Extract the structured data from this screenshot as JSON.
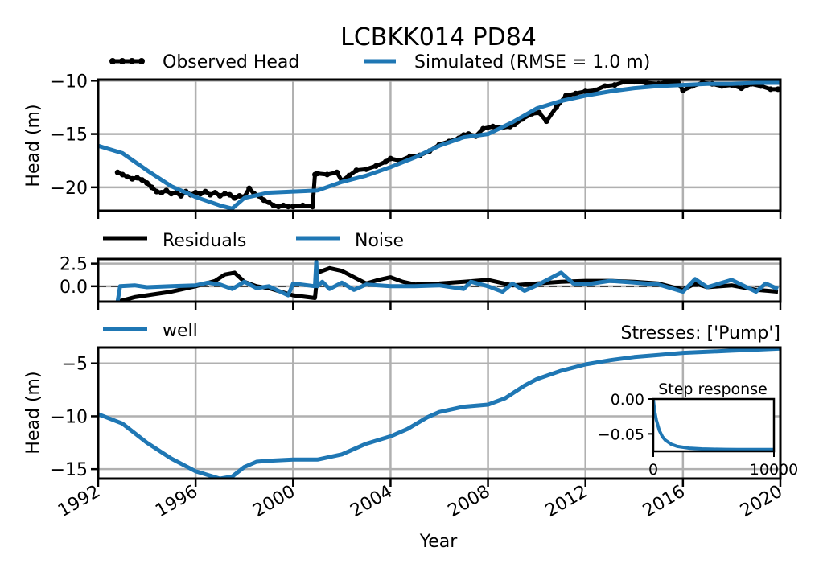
{
  "title": "LCBKK014 PD84",
  "xlabel": "Year",
  "x_ticks": [
    "1992",
    "1996",
    "2000",
    "2004",
    "2008",
    "2012",
    "2016",
    "2020"
  ],
  "colors": {
    "observed": "#000000",
    "simulated": "#1f77b4",
    "grid": "#b0b0b0",
    "zero_line": "#000000"
  },
  "chart_data": [
    {
      "id": "head-panel",
      "type": "line",
      "ylabel": "Head (m)",
      "xlim": [
        1992,
        2020
      ],
      "ylim": [
        -22.2,
        -9.9
      ],
      "y_ticks": [
        -10,
        -15,
        -20
      ],
      "y_tick_labels": [
        "−10",
        "−15",
        "−20"
      ],
      "grid": true,
      "legend": "top, horizontal",
      "series": [
        {
          "name": "Observed Head",
          "style": "line-markers",
          "color": "#000000",
          "x": [
            1992.8,
            1993.0,
            1993.2,
            1993.4,
            1993.6,
            1993.8,
            1994.0,
            1994.2,
            1994.4,
            1994.6,
            1994.8,
            1995.0,
            1995.2,
            1995.4,
            1995.6,
            1995.8,
            1996.0,
            1996.2,
            1996.4,
            1996.6,
            1996.8,
            1997.0,
            1997.2,
            1997.4,
            1997.6,
            1997.8,
            1998.0,
            1998.2,
            1998.4,
            1998.6,
            1998.8,
            1999.0,
            1999.2,
            1999.4,
            1999.6,
            1999.8,
            2000.0,
            2000.4,
            2000.8,
            2000.9,
            2001.0,
            2001.4,
            2001.8,
            2002.0,
            2002.3,
            2002.6,
            2003.0,
            2003.4,
            2003.8,
            2004.0,
            2004.4,
            2004.8,
            2005.2,
            2005.6,
            2006.0,
            2006.4,
            2006.8,
            2007.0,
            2007.2,
            2007.5,
            2007.8,
            2008.2,
            2008.6,
            2008.9,
            2009.1,
            2009.4,
            2009.8,
            2010.1,
            2010.4,
            2010.8,
            2011.2,
            2011.6,
            2012.0,
            2012.4,
            2012.8,
            2013.2,
            2013.6,
            2014.0,
            2014.5,
            2015.0,
            2015.4,
            2015.8,
            2016.0,
            2016.4,
            2016.8,
            2017.2,
            2017.6,
            2018.0,
            2018.4,
            2018.8,
            2019.2,
            2019.6,
            2019.9
          ],
          "y": [
            -18.6,
            -18.8,
            -19.0,
            -19.2,
            -19.1,
            -19.3,
            -19.6,
            -20.0,
            -20.4,
            -20.5,
            -20.3,
            -20.6,
            -20.5,
            -20.8,
            -20.4,
            -20.7,
            -20.5,
            -20.6,
            -20.4,
            -20.7,
            -20.5,
            -20.8,
            -20.6,
            -20.7,
            -21.0,
            -20.8,
            -20.9,
            -20.1,
            -20.6,
            -20.8,
            -21.2,
            -21.4,
            -21.7,
            -21.8,
            -21.7,
            -21.8,
            -21.8,
            -21.7,
            -21.8,
            -18.8,
            -18.7,
            -18.8,
            -18.6,
            -19.4,
            -18.9,
            -18.4,
            -18.3,
            -18.0,
            -17.6,
            -17.3,
            -17.5,
            -17.1,
            -17.0,
            -16.6,
            -16.0,
            -15.7,
            -15.4,
            -15.1,
            -15.0,
            -15.2,
            -14.5,
            -14.3,
            -14.4,
            -14.3,
            -14.1,
            -13.6,
            -13.1,
            -13.0,
            -13.8,
            -12.5,
            -11.4,
            -11.2,
            -11.0,
            -10.9,
            -10.5,
            -10.4,
            -10.1,
            -10.1,
            -10.2,
            -10.3,
            -10.1,
            -10.2,
            -10.9,
            -10.5,
            -10.2,
            -10.3,
            -10.5,
            -10.4,
            -10.7,
            -10.3,
            -10.5,
            -10.8,
            -10.8
          ]
        },
        {
          "name": "Simulated (RMSE = 1.0 m)",
          "style": "line",
          "color": "#1f77b4",
          "x": [
            1992.0,
            1993.0,
            1994.0,
            1995.0,
            1996.0,
            1997.0,
            1997.5,
            1998.0,
            1999.0,
            2000.0,
            2001.0,
            2002.0,
            2003.0,
            2004.0,
            2005.0,
            2006.0,
            2007.0,
            2008.0,
            2009.0,
            2010.0,
            2011.0,
            2012.0,
            2013.0,
            2014.0,
            2015.0,
            2016.0,
            2017.0,
            2018.0,
            2019.0,
            2020.0
          ],
          "y": [
            -16.1,
            -16.8,
            -18.4,
            -19.9,
            -20.9,
            -21.7,
            -22.0,
            -21.0,
            -20.5,
            -20.4,
            -20.3,
            -19.5,
            -18.9,
            -18.1,
            -17.2,
            -16.1,
            -15.3,
            -15.0,
            -13.9,
            -12.6,
            -11.9,
            -11.4,
            -11.0,
            -10.7,
            -10.5,
            -10.4,
            -10.3,
            -10.3,
            -10.2,
            -10.2
          ]
        }
      ]
    },
    {
      "id": "residuals-panel",
      "type": "line",
      "xlim": [
        1992,
        2020
      ],
      "ylim": [
        -1.7,
        3.0
      ],
      "y_ticks": [
        2.5,
        0.0
      ],
      "y_tick_labels": [
        "2.5",
        "0.0"
      ],
      "zero_line": "dashed",
      "grid": true,
      "legend": "top, horizontal",
      "series": [
        {
          "name": "Residuals",
          "color": "#000000",
          "x": [
            1992.8,
            1993.5,
            1994.0,
            1995.0,
            1996.0,
            1996.8,
            1997.2,
            1997.6,
            1998.0,
            1998.5,
            1999.0,
            2000.0,
            2000.9,
            2001.0,
            2001.5,
            2002.0,
            2003.0,
            2003.5,
            2004.0,
            2004.5,
            2005.0,
            2006.0,
            2007.0,
            2008.0,
            2009.0,
            2010.0,
            2011.0,
            2012.0,
            2013.0,
            2014.0,
            2015.0,
            2016.0,
            2016.5,
            2017.0,
            2018.0,
            2019.0,
            2019.5,
            2019.9
          ],
          "y": [
            -1.7,
            -1.2,
            -1.0,
            -0.6,
            0.0,
            0.6,
            1.3,
            1.5,
            0.5,
            0.0,
            -0.2,
            -1.0,
            -1.3,
            1.5,
            2.0,
            1.7,
            0.3,
            0.7,
            1.0,
            0.5,
            0.2,
            0.3,
            0.5,
            0.7,
            0.1,
            0.3,
            0.5,
            0.6,
            0.6,
            0.5,
            0.3,
            -0.4,
            0.3,
            -0.1,
            0.1,
            -0.4,
            -0.5,
            -0.6
          ]
        },
        {
          "name": "Noise",
          "color": "#1f77b4",
          "x": [
            1992.8,
            1992.9,
            1993.5,
            1994.0,
            1995.0,
            1996.0,
            1996.5,
            1997.0,
            1997.5,
            1998.0,
            1998.5,
            1999.0,
            1999.8,
            2000.0,
            2000.9,
            2000.95,
            2001.0,
            2001.2,
            2001.5,
            2002.0,
            2002.5,
            2003.0,
            2004.0,
            2005.0,
            2006.0,
            2007.0,
            2007.3,
            2008.0,
            2008.6,
            2009.0,
            2009.5,
            2010.0,
            2011.0,
            2011.5,
            2012.0,
            2013.0,
            2014.0,
            2015.0,
            2016.0,
            2016.5,
            2017.0,
            2018.0,
            2019.0,
            2019.4,
            2019.9
          ],
          "y": [
            -1.7,
            0.0,
            0.1,
            -0.1,
            0.0,
            0.1,
            0.4,
            0.2,
            -0.3,
            0.5,
            -0.2,
            0.0,
            -1.0,
            0.3,
            0.0,
            2.7,
            0.0,
            0.5,
            -0.3,
            0.4,
            -0.4,
            0.2,
            0.0,
            0.0,
            0.1,
            -0.3,
            0.5,
            0.0,
            -0.6,
            0.3,
            -0.5,
            0.1,
            1.5,
            0.3,
            0.2,
            0.6,
            0.4,
            0.2,
            -0.6,
            0.8,
            -0.1,
            0.7,
            -0.6,
            0.3,
            -0.3
          ]
        }
      ]
    },
    {
      "id": "contribution-panel",
      "type": "line",
      "ylabel": "Head (m)",
      "xlim": [
        1992,
        2020
      ],
      "ylim": [
        -15.9,
        -3.5
      ],
      "y_ticks": [
        -5,
        -10,
        -15
      ],
      "y_tick_labels": [
        "−5",
        "−10",
        "−15"
      ],
      "grid": true,
      "legend": "top-left",
      "annotation": "Stresses: ['Pump']",
      "series": [
        {
          "name": "well",
          "color": "#1f77b4",
          "x": [
            1992.0,
            1993.0,
            1994.0,
            1995.0,
            1996.0,
            1997.0,
            1997.5,
            1998.0,
            1998.5,
            1999.0,
            2000.0,
            2001.0,
            2002.0,
            2003.0,
            2004.0,
            2004.7,
            2005.5,
            2006.0,
            2007.0,
            2008.0,
            2008.7,
            2009.5,
            2010.0,
            2011.0,
            2012.0,
            2013.0,
            2014.0,
            2015.0,
            2016.0,
            2017.0,
            2018.0,
            2019.0,
            2020.0
          ],
          "y": [
            -9.8,
            -10.7,
            -12.5,
            -14.0,
            -15.2,
            -15.9,
            -15.7,
            -14.8,
            -14.3,
            -14.2,
            -14.1,
            -14.1,
            -13.6,
            -12.6,
            -11.9,
            -11.2,
            -10.1,
            -9.6,
            -9.1,
            -8.9,
            -8.3,
            -7.1,
            -6.5,
            -5.7,
            -5.1,
            -4.7,
            -4.4,
            -4.2,
            -4.0,
            -3.9,
            -3.8,
            -3.7,
            -3.6
          ]
        }
      ]
    },
    {
      "id": "step-response-inset",
      "type": "line",
      "title": "Step response",
      "xlim": [
        0,
        10000
      ],
      "ylim": [
        -0.075,
        0.0
      ],
      "x_ticks": [
        0,
        10000
      ],
      "x_tick_labels": [
        "0",
        "10000"
      ],
      "y_ticks": [
        0.0,
        -0.05
      ],
      "y_tick_labels": [
        "0.00",
        "−0.05"
      ],
      "series": [
        {
          "color": "#1f77b4",
          "x": [
            0,
            100,
            250,
            500,
            750,
            1000,
            1500,
            2000,
            3000,
            4000,
            5000,
            6000,
            7000,
            8000,
            9000,
            10000
          ],
          "y": [
            0.0,
            -0.016,
            -0.03,
            -0.045,
            -0.054,
            -0.059,
            -0.065,
            -0.068,
            -0.0705,
            -0.0715,
            -0.072,
            -0.0722,
            -0.0723,
            -0.0724,
            -0.0724,
            -0.0724
          ]
        }
      ]
    }
  ]
}
